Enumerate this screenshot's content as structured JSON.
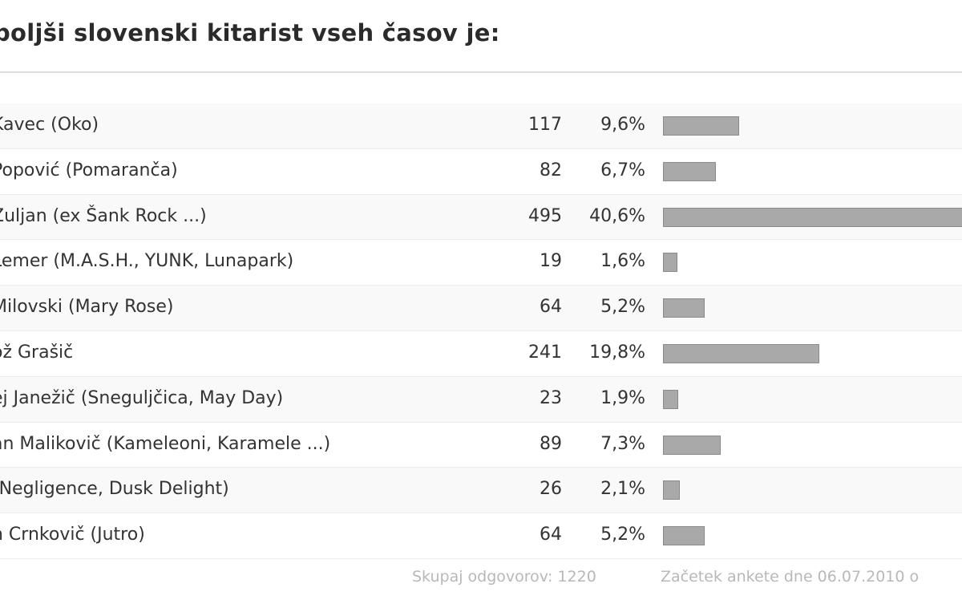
{
  "poll": {
    "title": "boljši slovenski kitarist vseh časov je:",
    "footer_total": "Skupaj odgovorov: 1220",
    "footer_start": "Začetek ankete dne 06.07.2010 o"
  },
  "colors": {
    "bar": "#a9a9a9",
    "bar_border": "#8a8a8a",
    "text": "#333333",
    "row_alt": "#f9f9f9"
  },
  "chart_data": {
    "type": "bar",
    "orientation": "horizontal",
    "title": "boljši slovenski kitarist vseh časov je:",
    "categories": [
      "Kavec (Oko)",
      "Popović (Pomaranča)",
      "Zuljan (ex Šank Rock ...)",
      "Lemer (M.A.S.H., YUNK, Lunapark)",
      "Milovski (Mary Rose)",
      "ož Grašič",
      "ej Janežič (Sneguljčica, May Day)",
      "an Malikovič (Kameleoni, Karamele ...)",
      "(Negligence, Dusk Delight)",
      "n Crnkovič (Jutro)"
    ],
    "series": [
      {
        "values": [
          117,
          82,
          495,
          19,
          64,
          241,
          23,
          89,
          26,
          64
        ],
        "percent_labels": [
          "9,6%",
          "6,7%",
          "40,6%",
          "1,6%",
          "5,2%",
          "19,8%",
          "1,9%",
          "7,3%",
          "2,1%",
          "5,2%"
        ]
      }
    ],
    "total": 1220
  }
}
